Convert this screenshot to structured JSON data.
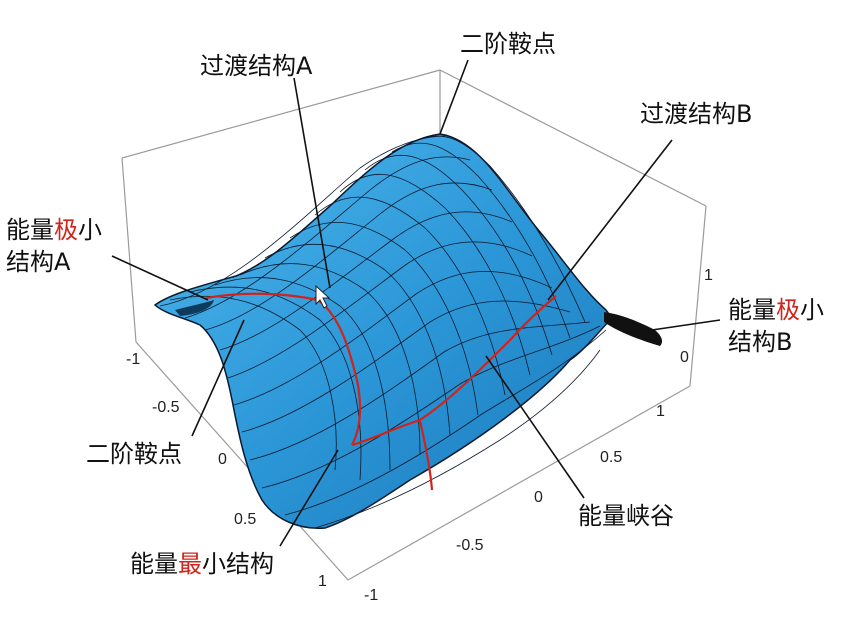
{
  "labels": {
    "transition_a": "过渡结构A",
    "second_order_saddle_top": "二阶鞍点",
    "transition_b": "过渡结构B",
    "local_min_a_line1_prefix": "能量",
    "local_min_a_line1_highlight": "极",
    "local_min_a_line1_suffix": "小",
    "local_min_a_line2": "结构A",
    "local_min_b_line1_prefix": "能量",
    "local_min_b_line1_highlight": "极",
    "local_min_b_line1_suffix": "小",
    "local_min_b_line2": "结构B",
    "second_order_saddle_left": "二阶鞍点",
    "energy_valley": "能量峡谷",
    "global_min_prefix": "能量",
    "global_min_highlight": "最",
    "global_min_suffix": "小结构"
  },
  "axes": {
    "left_ticks": [
      "-1",
      "-0.5",
      "0",
      "0.5",
      "1"
    ],
    "right_ticks": [
      "-1",
      "-0.5",
      "0",
      "0.5",
      "1"
    ],
    "vertical_ticks": [
      "1",
      "0"
    ]
  },
  "colors": {
    "surface": "#2f9fdd",
    "mesh": "#0b1a2e",
    "path": "#d0231b",
    "highlight_text": "#d0231b"
  }
}
